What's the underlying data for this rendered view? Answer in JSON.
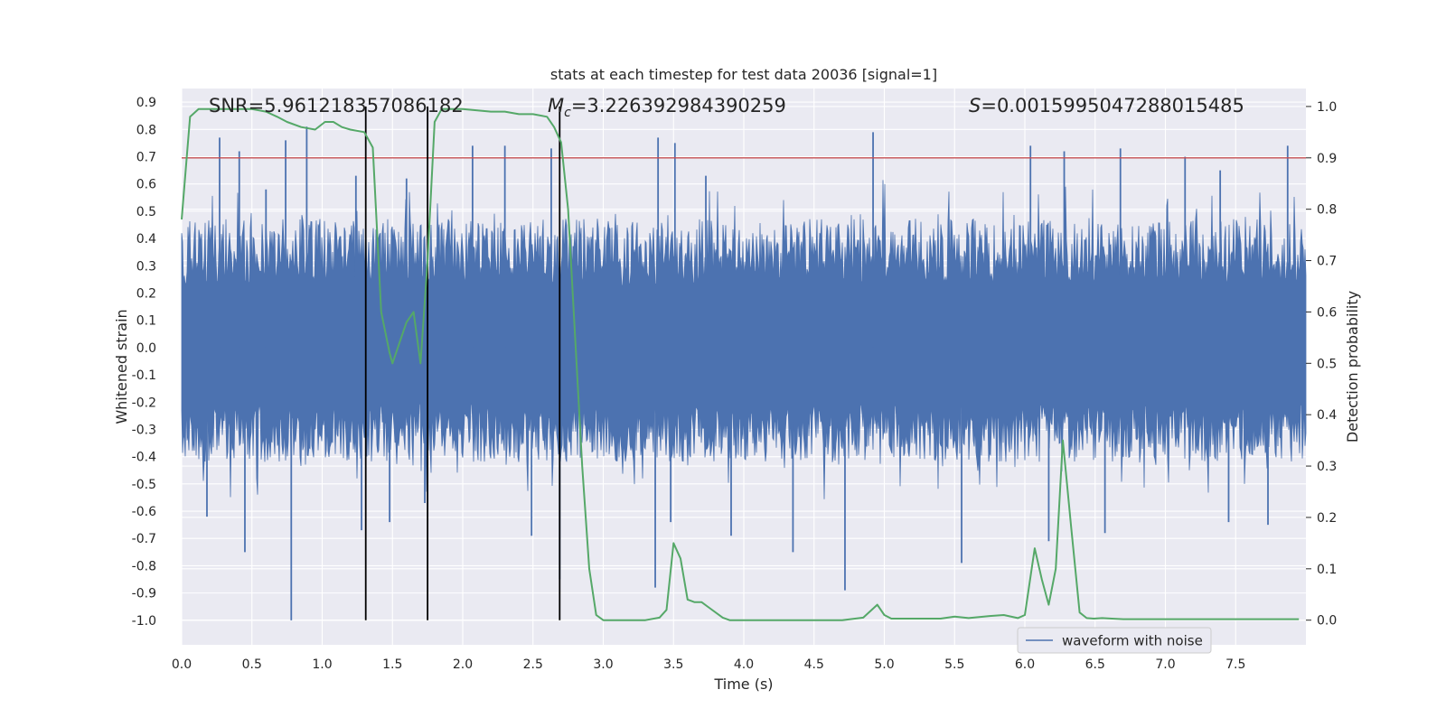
{
  "chart_data": {
    "type": "line",
    "title": "stats at each timestep for test data 20036 [signal=1]",
    "xlabel": "Time (s)",
    "ylabel_left": "Whitened strain",
    "ylabel_right": "Detection probability",
    "xlim": [
      0.0,
      8.0
    ],
    "ylim_left": [
      -1.09,
      0.95
    ],
    "ylim_right": [
      -0.048,
      1.035
    ],
    "x_ticks": [
      "0.0",
      "0.5",
      "1.0",
      "1.5",
      "2.0",
      "2.5",
      "3.0",
      "3.5",
      "4.0",
      "4.5",
      "5.0",
      "5.5",
      "6.0",
      "6.5",
      "7.0",
      "7.5"
    ],
    "y_ticks_left": [
      "0.9",
      "0.8",
      "0.7",
      "0.6",
      "0.5",
      "0.4",
      "0.3",
      "0.2",
      "0.1",
      "0.0",
      "-0.1",
      "-0.2",
      "-0.3",
      "-0.4",
      "-0.5",
      "-0.6",
      "-0.7",
      "-0.8",
      "-0.9",
      "-1.0"
    ],
    "y_ticks_right": [
      "1.0",
      "0.9",
      "0.8",
      "0.7",
      "0.6",
      "0.5",
      "0.4",
      "0.3",
      "0.2",
      "0.1",
      "0.0"
    ],
    "annotations": {
      "snr": "SNR=5.961218357086182",
      "mc_symbol": "M",
      "mc_subscript": "c",
      "mc_value": "=3.226392984390259",
      "s_symbol": "S",
      "s_value": "=0.0015995047288015485"
    },
    "legend": {
      "label": "waveform with noise",
      "placement": "lower-right"
    },
    "threshold_right": 0.9,
    "vertical_markers": [
      1.31,
      1.75,
      2.69
    ],
    "series": [
      {
        "name": "waveform with noise",
        "axis": "left",
        "color": "#4c72b0",
        "envelope_upper": 0.45,
        "envelope_lower": -0.4,
        "peaks": [
          [
            0.27,
            0.77
          ],
          [
            0.41,
            0.72
          ],
          [
            0.6,
            0.58
          ],
          [
            0.74,
            0.76
          ],
          [
            0.89,
            0.81
          ],
          [
            1.24,
            0.63
          ],
          [
            1.6,
            0.62
          ],
          [
            2.07,
            0.74
          ],
          [
            2.3,
            0.74
          ],
          [
            2.63,
            0.73
          ],
          [
            3.39,
            0.77
          ],
          [
            3.51,
            0.75
          ],
          [
            3.73,
            0.63
          ],
          [
            4.92,
            0.79
          ],
          [
            6.04,
            0.74
          ],
          [
            6.28,
            0.72
          ],
          [
            6.68,
            0.73
          ],
          [
            7.14,
            0.7
          ],
          [
            7.39,
            0.65
          ],
          [
            7.87,
            0.74
          ]
        ],
        "troughs": [
          [
            0.18,
            -0.62
          ],
          [
            0.45,
            -0.75
          ],
          [
            0.78,
            -1.0
          ],
          [
            1.28,
            -0.67
          ],
          [
            1.48,
            -0.64
          ],
          [
            1.73,
            -0.57
          ],
          [
            2.49,
            -0.69
          ],
          [
            2.69,
            -0.85
          ],
          [
            3.37,
            -0.88
          ],
          [
            3.48,
            -0.64
          ],
          [
            3.91,
            -0.69
          ],
          [
            4.35,
            -0.75
          ],
          [
            4.72,
            -0.89
          ],
          [
            5.55,
            -0.79
          ],
          [
            6.17,
            -0.71
          ],
          [
            6.57,
            -0.68
          ],
          [
            7.45,
            -0.64
          ],
          [
            7.73,
            -0.65
          ]
        ]
      },
      {
        "name": "detection probability",
        "axis": "right",
        "color": "#55a868",
        "x": [
          0.0,
          0.06,
          0.12,
          0.2,
          0.3,
          0.4,
          0.5,
          0.6,
          0.68,
          0.75,
          0.85,
          0.95,
          1.02,
          1.08,
          1.14,
          1.2,
          1.3,
          1.36,
          1.42,
          1.48,
          1.5,
          1.55,
          1.6,
          1.65,
          1.7,
          1.75,
          1.8,
          1.85,
          1.9,
          2.0,
          2.2,
          2.3,
          2.4,
          2.5,
          2.6,
          2.65,
          2.7,
          2.75,
          2.8,
          2.85,
          2.9,
          2.95,
          3.0,
          3.1,
          3.2,
          3.3,
          3.4,
          3.45,
          3.5,
          3.55,
          3.6,
          3.65,
          3.7,
          3.75,
          3.85,
          3.9,
          4.0,
          4.2,
          4.4,
          4.5,
          4.6,
          4.7,
          4.85,
          4.95,
          5.0,
          5.05,
          5.15,
          5.25,
          5.4,
          5.5,
          5.6,
          5.75,
          5.85,
          5.95,
          6.0,
          6.07,
          6.12,
          6.17,
          6.22,
          6.27,
          6.33,
          6.39,
          6.44,
          6.49,
          6.55,
          6.62,
          6.7,
          6.9,
          7.2,
          7.6,
          7.95
        ],
        "values": [
          0.78,
          0.98,
          0.995,
          0.995,
          0.995,
          0.995,
          0.995,
          0.99,
          0.98,
          0.97,
          0.96,
          0.955,
          0.97,
          0.97,
          0.96,
          0.955,
          0.95,
          0.92,
          0.6,
          0.52,
          0.5,
          0.54,
          0.58,
          0.6,
          0.5,
          0.7,
          0.97,
          0.995,
          0.995,
          0.995,
          0.99,
          0.99,
          0.985,
          0.985,
          0.98,
          0.96,
          0.93,
          0.8,
          0.55,
          0.3,
          0.1,
          0.01,
          0.0,
          0.0,
          0.0,
          0.0,
          0.005,
          0.02,
          0.15,
          0.12,
          0.04,
          0.035,
          0.035,
          0.025,
          0.005,
          0.0,
          0.0,
          0.0,
          0.0,
          0.0,
          0.0,
          0.0,
          0.005,
          0.03,
          0.01,
          0.003,
          0.003,
          0.003,
          0.003,
          0.007,
          0.004,
          0.008,
          0.01,
          0.004,
          0.01,
          0.14,
          0.08,
          0.03,
          0.1,
          0.35,
          0.18,
          0.015,
          0.004,
          0.003,
          0.004,
          0.003,
          0.002,
          0.002,
          0.002,
          0.002,
          0.002
        ]
      }
    ]
  }
}
